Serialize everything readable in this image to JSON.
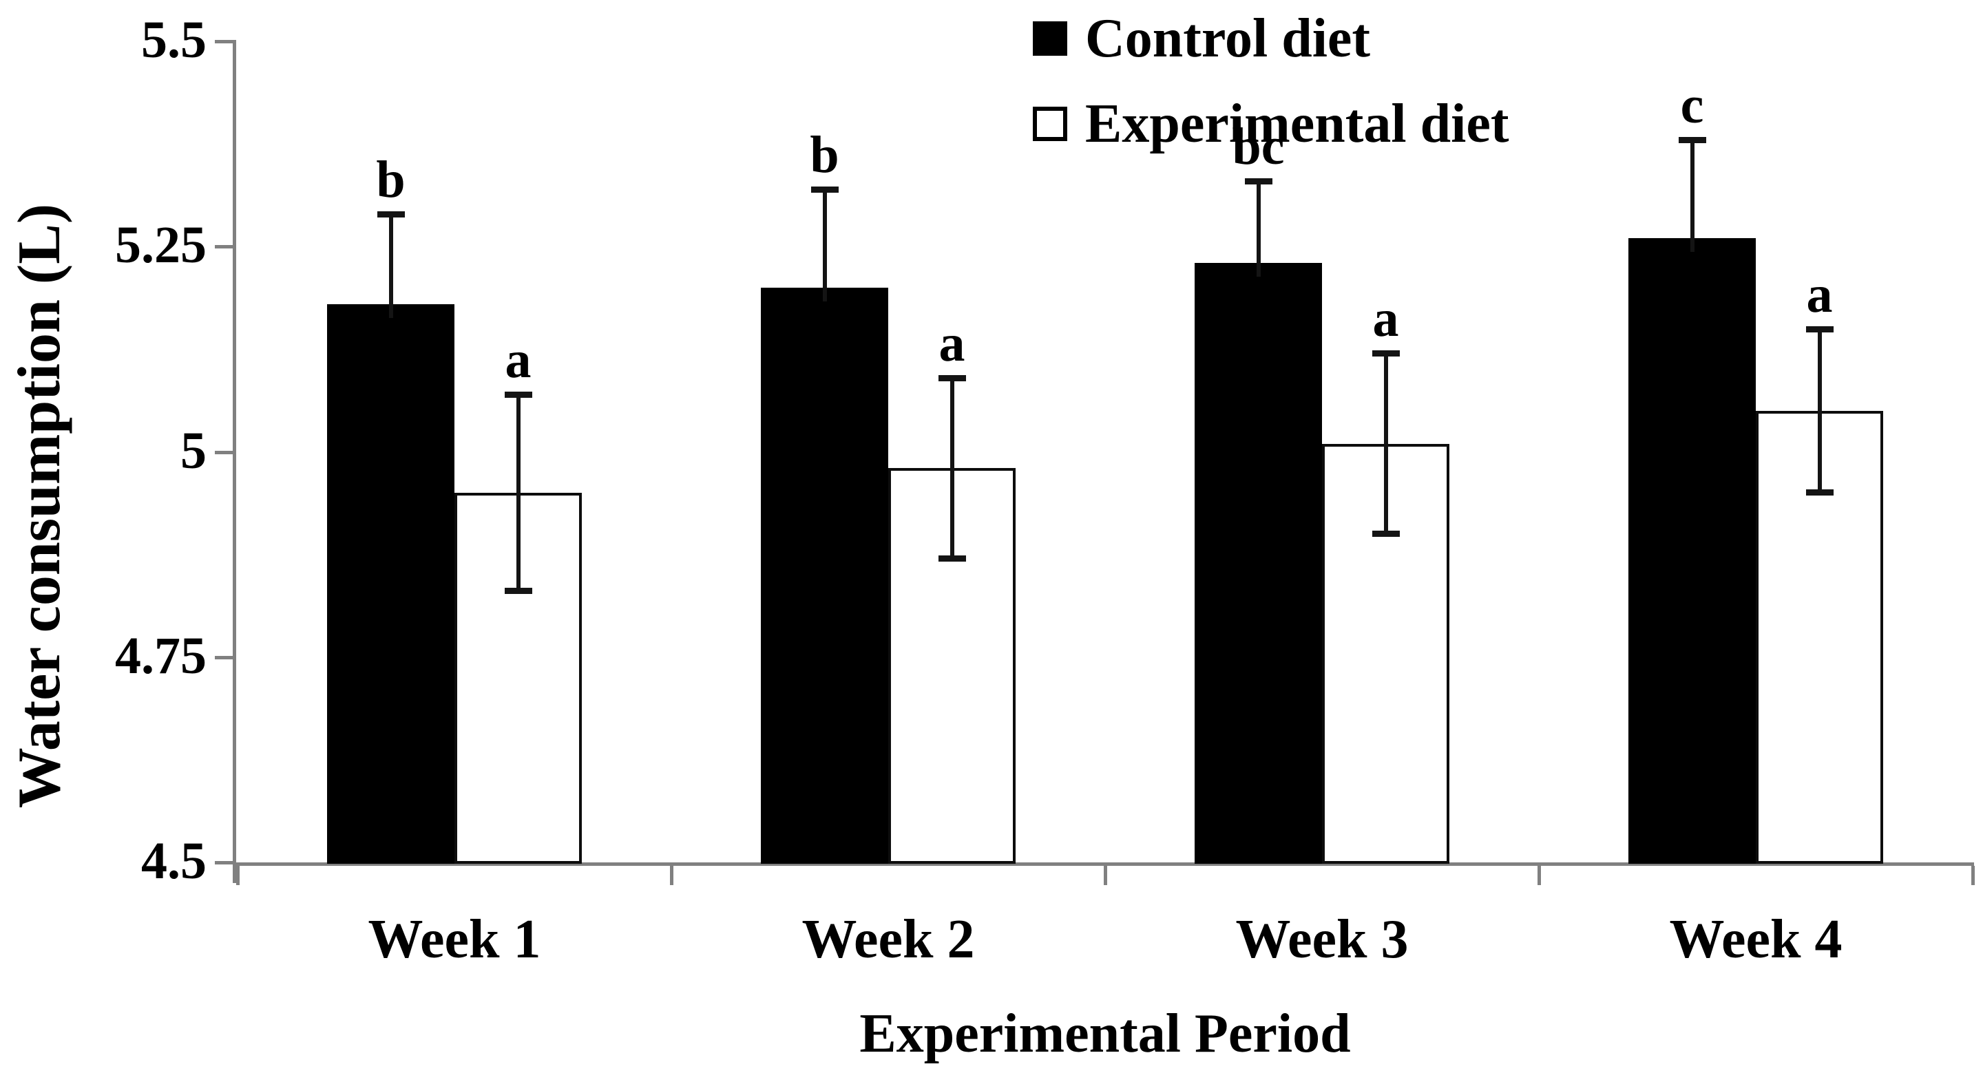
{
  "chart_data": {
    "type": "bar",
    "title": "",
    "categories": [
      "Week 1",
      "Week 2",
      "Week 3",
      "Week 4"
    ],
    "series": [
      {
        "name": "Control diet",
        "marker": "filled-square",
        "fill": "#000000",
        "values": [
          5.18,
          5.2,
          5.23,
          5.26
        ],
        "err_up": [
          0.11,
          0.12,
          0.1,
          0.12
        ],
        "err_down": [
          0.11,
          0.12,
          0.1,
          0.12
        ],
        "err_down_shown": false,
        "sig_labels": [
          "b",
          "b",
          "bc",
          "c"
        ]
      },
      {
        "name": "Experimental diet",
        "marker": "open-square",
        "fill": "#ffffff",
        "values": [
          4.95,
          4.98,
          5.01,
          5.05
        ],
        "err_up": [
          0.12,
          0.11,
          0.11,
          0.1
        ],
        "err_down": [
          0.12,
          0.11,
          0.11,
          0.1
        ],
        "err_down_shown": true,
        "sig_labels": [
          "a",
          "a",
          "a",
          "a"
        ]
      }
    ],
    "xlabel": "Experimental Period",
    "ylabel": "Water consumption (L)",
    "ylim": [
      4.5,
      5.5
    ],
    "yticks": [
      5.5,
      5.25,
      5.0,
      4.75,
      4.5
    ],
    "ytick_labels": [
      "5.5",
      "5.25",
      "5",
      "4.75",
      "4.5"
    ],
    "grid": false,
    "legend_position": "top-center",
    "colors": {
      "axis": "#808080",
      "bar_fill": "#000000",
      "bar_open_fill": "#ffffff",
      "error_bar": "#141414",
      "text": "#000000",
      "background": "#ffffff"
    }
  }
}
